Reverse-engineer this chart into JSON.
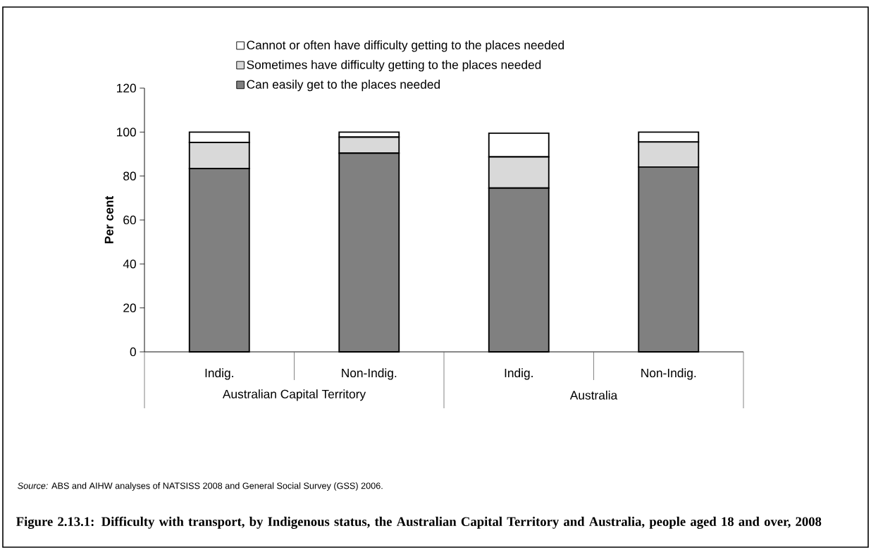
{
  "chart_data": {
    "type": "bar",
    "stacked": true,
    "title": "Figure 2.13.1: Difficulty with transport, by Indigenous status, the Australian Capital Territory and Australia, people aged 18 and over, 2008",
    "ylabel": "Per cent",
    "categories": [
      "Indig.",
      "Non-Indig.",
      "Indig.",
      "Non-Indig."
    ],
    "series": [
      {
        "name": "Can easily get to the places needed",
        "color": "#808080",
        "values": [
          83.4,
          90.4,
          74.5,
          84.1
        ]
      },
      {
        "name": "Sometimes have difficulty getting to the places needed",
        "color": "#d9d9d9",
        "values": [
          11.9,
          7.3,
          14.2,
          11.4
        ]
      },
      {
        "name": "Cannot or often have difficulty getting to the places needed",
        "color": "#ffffff",
        "values": [
          4.7,
          2.3,
          10.8,
          4.5
        ]
      }
    ],
    "ylim": [
      0,
      120
    ],
    "yticks": [
      0,
      20,
      40,
      60,
      80,
      100,
      120
    ],
    "legend": "top",
    "annotations": [
      "Australian Capital Territory",
      "Australia",
      "*Source:* ABS and AIHW analyses of NATSISS 2008 and General Social Survey (GSS) 2006."
    ]
  }
}
